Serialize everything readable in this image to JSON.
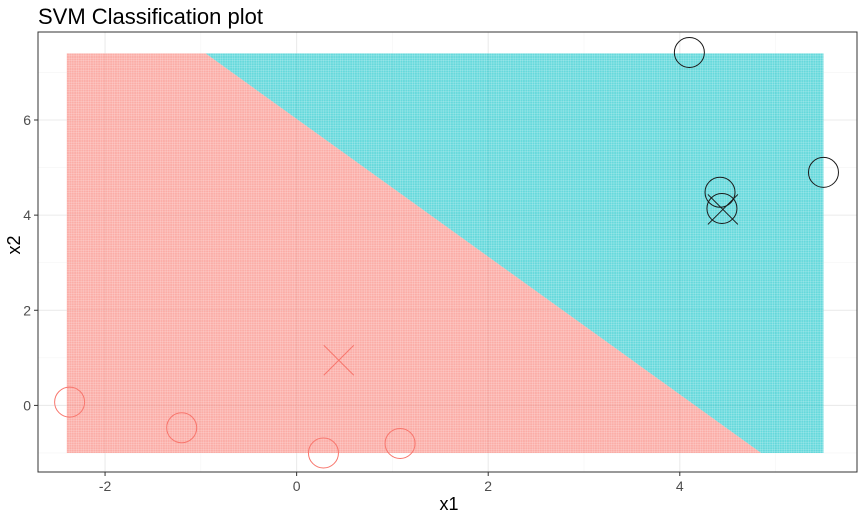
{
  "chart_data": {
    "type": "scatter",
    "title": "SVM Classification plot",
    "xlabel": "x1",
    "ylabel": "x2",
    "xlim": [
      -2.7,
      5.85
    ],
    "ylim": [
      -1.4,
      7.85
    ],
    "x_ticks": [
      -2,
      0,
      2,
      4
    ],
    "y_ticks": [
      0,
      2,
      4,
      6
    ],
    "x_tick_labels": [
      "-2",
      "0",
      "2",
      "4"
    ],
    "y_tick_labels": [
      "0",
      "2",
      "4",
      "6"
    ],
    "grid": true,
    "background": {
      "type": "decision-region-grid",
      "x_range": [
        -2.4,
        5.5
      ],
      "y_range": [
        -1.0,
        7.4
      ],
      "boundary": {
        "x1_at_top": -0.95,
        "x1_at_bottom": 4.85
      },
      "colors": {
        "class_a": "#f8766d",
        "class_b": "#00bfc4"
      }
    },
    "series": [
      {
        "marker": "circle",
        "color": "#f8766d",
        "points": [
          {
            "x": -2.37,
            "y": 0.07
          },
          {
            "x": -1.2,
            "y": -0.47
          },
          {
            "x": 0.28,
            "y": -1.0
          },
          {
            "x": 1.08,
            "y": -0.8
          }
        ]
      },
      {
        "marker": "cross",
        "color": "#f8766d",
        "points": [
          {
            "x": 0.44,
            "y": 0.95
          }
        ]
      },
      {
        "marker": "circle",
        "color": "#1a1a1a",
        "points": [
          {
            "x": 4.1,
            "y": 7.42
          },
          {
            "x": 4.42,
            "y": 4.48
          },
          {
            "x": 4.44,
            "y": 4.14
          },
          {
            "x": 5.5,
            "y": 4.9
          }
        ]
      },
      {
        "marker": "cross",
        "color": "#1a1a1a",
        "points": [
          {
            "x": 4.45,
            "y": 4.12
          }
        ]
      }
    ]
  },
  "colors": {
    "panel_border": "#333333",
    "grid_major": "#ebebeb",
    "grid_minor": "#f5f5f5"
  }
}
